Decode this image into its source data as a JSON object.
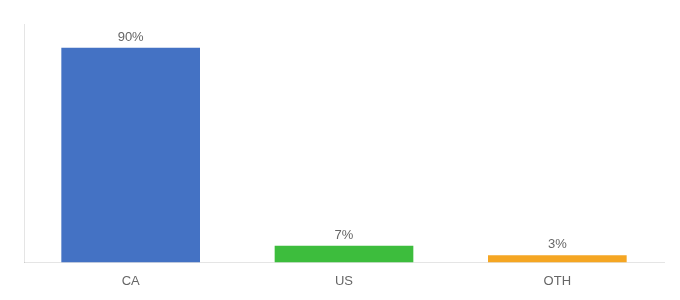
{
  "chart_data": {
    "type": "bar",
    "categories": [
      "CA",
      "US",
      "OTH"
    ],
    "values": [
      90,
      7,
      3
    ],
    "value_labels": [
      "90%",
      "7%",
      "3%"
    ],
    "colors": [
      "#4472C4",
      "#3DBD3D",
      "#F5A623"
    ],
    "ylim": [
      0,
      100
    ],
    "grid": false,
    "data_labels": true,
    "tick_labels": "x"
  }
}
